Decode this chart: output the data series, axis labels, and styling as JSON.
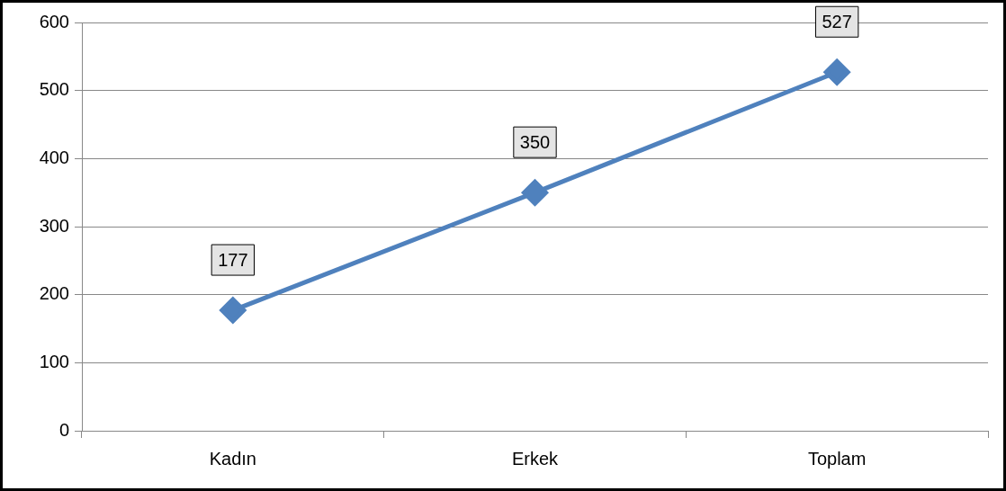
{
  "chart_data": {
    "type": "line",
    "categories": [
      "Kadın",
      "Erkek",
      "Toplam"
    ],
    "values": [
      177,
      350,
      527
    ],
    "color": "#4f81bd",
    "ylim": [
      0,
      600
    ],
    "yticks": [
      0,
      100,
      200,
      300,
      400,
      500,
      600
    ],
    "grid": "y",
    "marker": "diamond",
    "data_labels": true
  }
}
